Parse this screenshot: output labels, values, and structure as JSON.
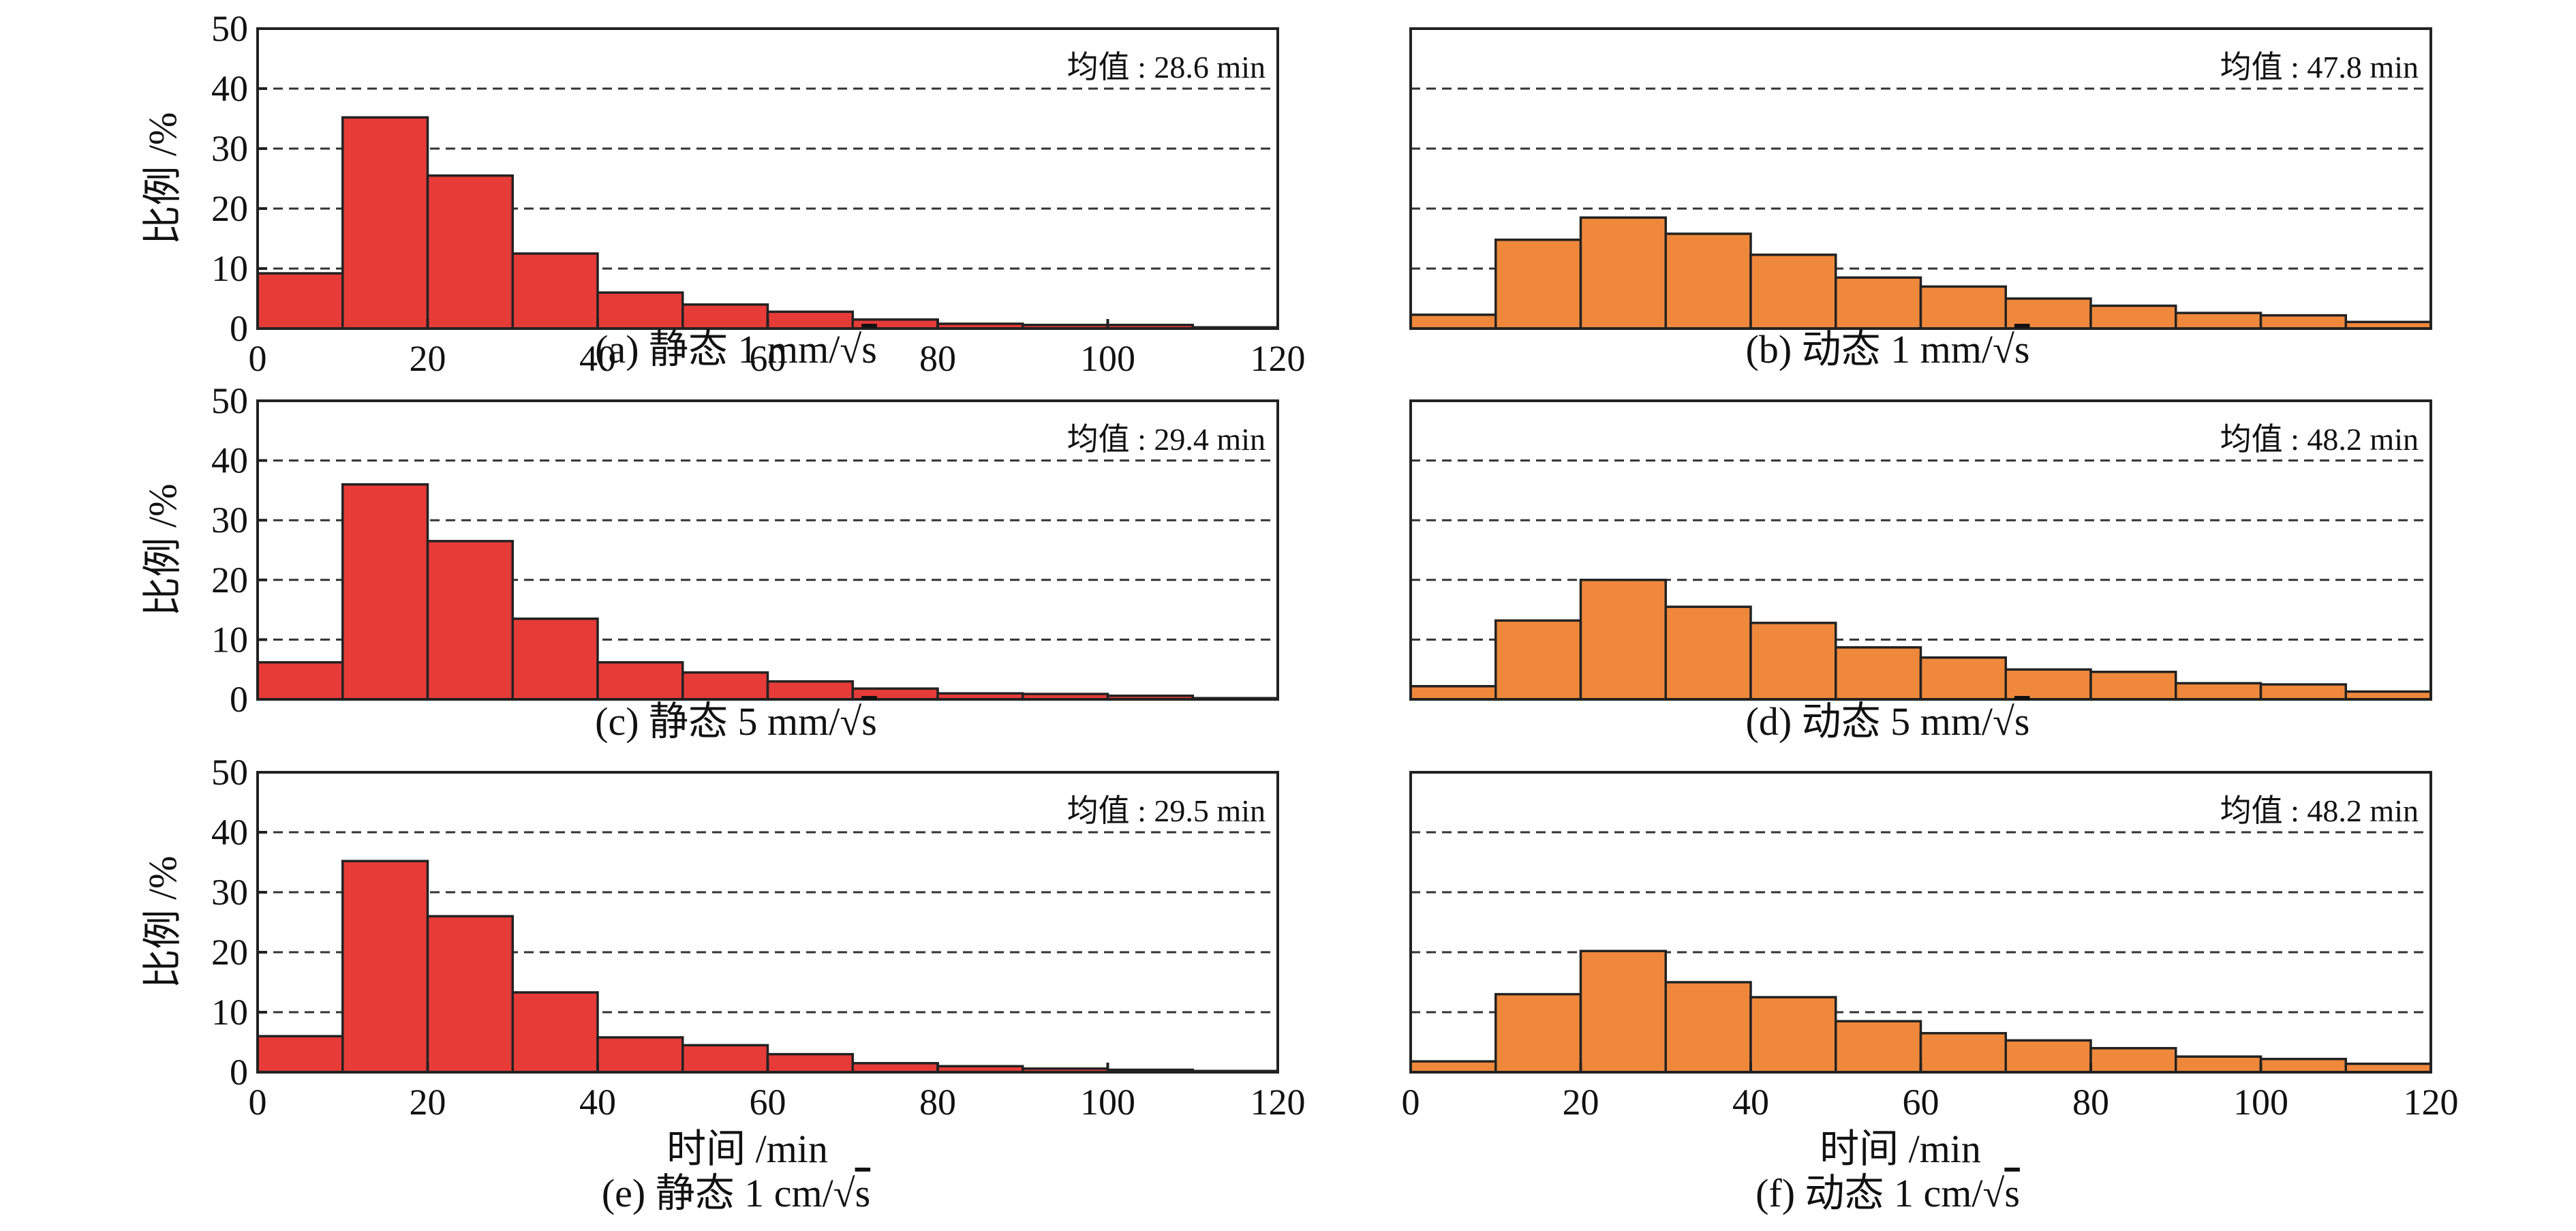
{
  "chart_data": [
    {
      "id": "a",
      "type": "bar",
      "caption_prefix": "(a) 静态 1 mm/",
      "caption_radicand": "s",
      "mean_label": "均值 : 28.6 min",
      "ylabel": "比例 /%",
      "xlabel": "",
      "ylim": [
        0,
        50
      ],
      "yticks": [
        0,
        10,
        20,
        30,
        40,
        50
      ],
      "xlim": [
        0,
        120
      ],
      "xticks": [
        0,
        20,
        40,
        60,
        80,
        100,
        120
      ],
      "bin_width": 10,
      "bin_starts": [
        0,
        10,
        20,
        30,
        40,
        50,
        60,
        70,
        80,
        90,
        100,
        110
      ],
      "values": [
        9.2,
        35.2,
        25.5,
        12.5,
        6.0,
        4.0,
        2.8,
        1.5,
        0.8,
        0.6,
        0.6,
        0.2
      ],
      "color": "#e73b38"
    },
    {
      "id": "b",
      "type": "bar",
      "caption_prefix": "(b) 动态 1 mm/",
      "caption_radicand": "s",
      "mean_label": "均值 : 47.8 min",
      "ylabel": "",
      "xlabel": "",
      "ylim": [
        0,
        50
      ],
      "yticks": [],
      "xlim": [
        0,
        120
      ],
      "xticks": [],
      "bin_width": 10,
      "bin_starts": [
        0,
        10,
        20,
        30,
        40,
        50,
        60,
        70,
        80,
        90,
        100,
        110
      ],
      "values": [
        2.3,
        14.8,
        18.5,
        15.8,
        12.3,
        8.5,
        7.0,
        5.0,
        3.8,
        2.6,
        2.2,
        1.1
      ],
      "color": "#f0883b"
    },
    {
      "id": "c",
      "type": "bar",
      "caption_prefix": "(c) 静态 5 mm/",
      "caption_radicand": "s",
      "mean_label": "均值 : 29.4 min",
      "ylabel": "比例 /%",
      "xlabel": "",
      "ylim": [
        0,
        50
      ],
      "yticks": [
        0,
        10,
        20,
        30,
        40,
        50
      ],
      "xlim": [
        0,
        120
      ],
      "xticks": [],
      "bin_width": 10,
      "bin_starts": [
        0,
        10,
        20,
        30,
        40,
        50,
        60,
        70,
        80,
        90,
        100,
        110
      ],
      "values": [
        6.2,
        36.0,
        26.5,
        13.5,
        6.2,
        4.5,
        3.0,
        1.8,
        1.0,
        0.9,
        0.6,
        0.2
      ],
      "color": "#e73b38"
    },
    {
      "id": "d",
      "type": "bar",
      "caption_prefix": "(d) 动态 5 mm/",
      "caption_radicand": "s",
      "mean_label": "均值 : 48.2 min",
      "ylabel": "",
      "xlabel": "",
      "ylim": [
        0,
        50
      ],
      "yticks": [],
      "xlim": [
        0,
        120
      ],
      "xticks": [],
      "bin_width": 10,
      "bin_starts": [
        0,
        10,
        20,
        30,
        40,
        50,
        60,
        70,
        80,
        90,
        100,
        110
      ],
      "values": [
        2.2,
        13.2,
        20.0,
        15.5,
        12.8,
        8.7,
        7.0,
        5.0,
        4.6,
        2.7,
        2.5,
        1.3
      ],
      "color": "#f0883b"
    },
    {
      "id": "e",
      "type": "bar",
      "caption_prefix": "(e) 静态 1 cm/",
      "caption_radicand": "s",
      "mean_label": "均值 : 29.5 min",
      "ylabel": "比例 /%",
      "xlabel": "时间 /min",
      "ylim": [
        0,
        50
      ],
      "yticks": [
        0,
        10,
        20,
        30,
        40,
        50
      ],
      "xlim": [
        0,
        120
      ],
      "xticks": [
        0,
        20,
        40,
        60,
        80,
        100,
        120
      ],
      "bin_width": 10,
      "bin_starts": [
        0,
        10,
        20,
        30,
        40,
        50,
        60,
        70,
        80,
        90,
        100,
        110
      ],
      "values": [
        6.0,
        35.2,
        26.0,
        13.3,
        5.8,
        4.5,
        3.0,
        1.5,
        1.0,
        0.6,
        0.4,
        0.2
      ],
      "color": "#e73b38"
    },
    {
      "id": "f",
      "type": "bar",
      "caption_prefix": "(f) 动态 1 cm/",
      "caption_radicand": "s",
      "mean_label": "均值 : 48.2 min",
      "ylabel": "",
      "xlabel": "时间 /min",
      "ylim": [
        0,
        50
      ],
      "yticks": [],
      "xlim": [
        0,
        120
      ],
      "xticks": [
        0,
        20,
        40,
        60,
        80,
        100,
        120
      ],
      "bin_width": 10,
      "bin_starts": [
        0,
        10,
        20,
        30,
        40,
        50,
        60,
        70,
        80,
        90,
        100,
        110
      ],
      "values": [
        1.8,
        13.0,
        20.2,
        15.0,
        12.5,
        8.5,
        6.5,
        5.3,
        4.0,
        2.6,
        2.2,
        1.4
      ],
      "color": "#f0883b"
    }
  ]
}
